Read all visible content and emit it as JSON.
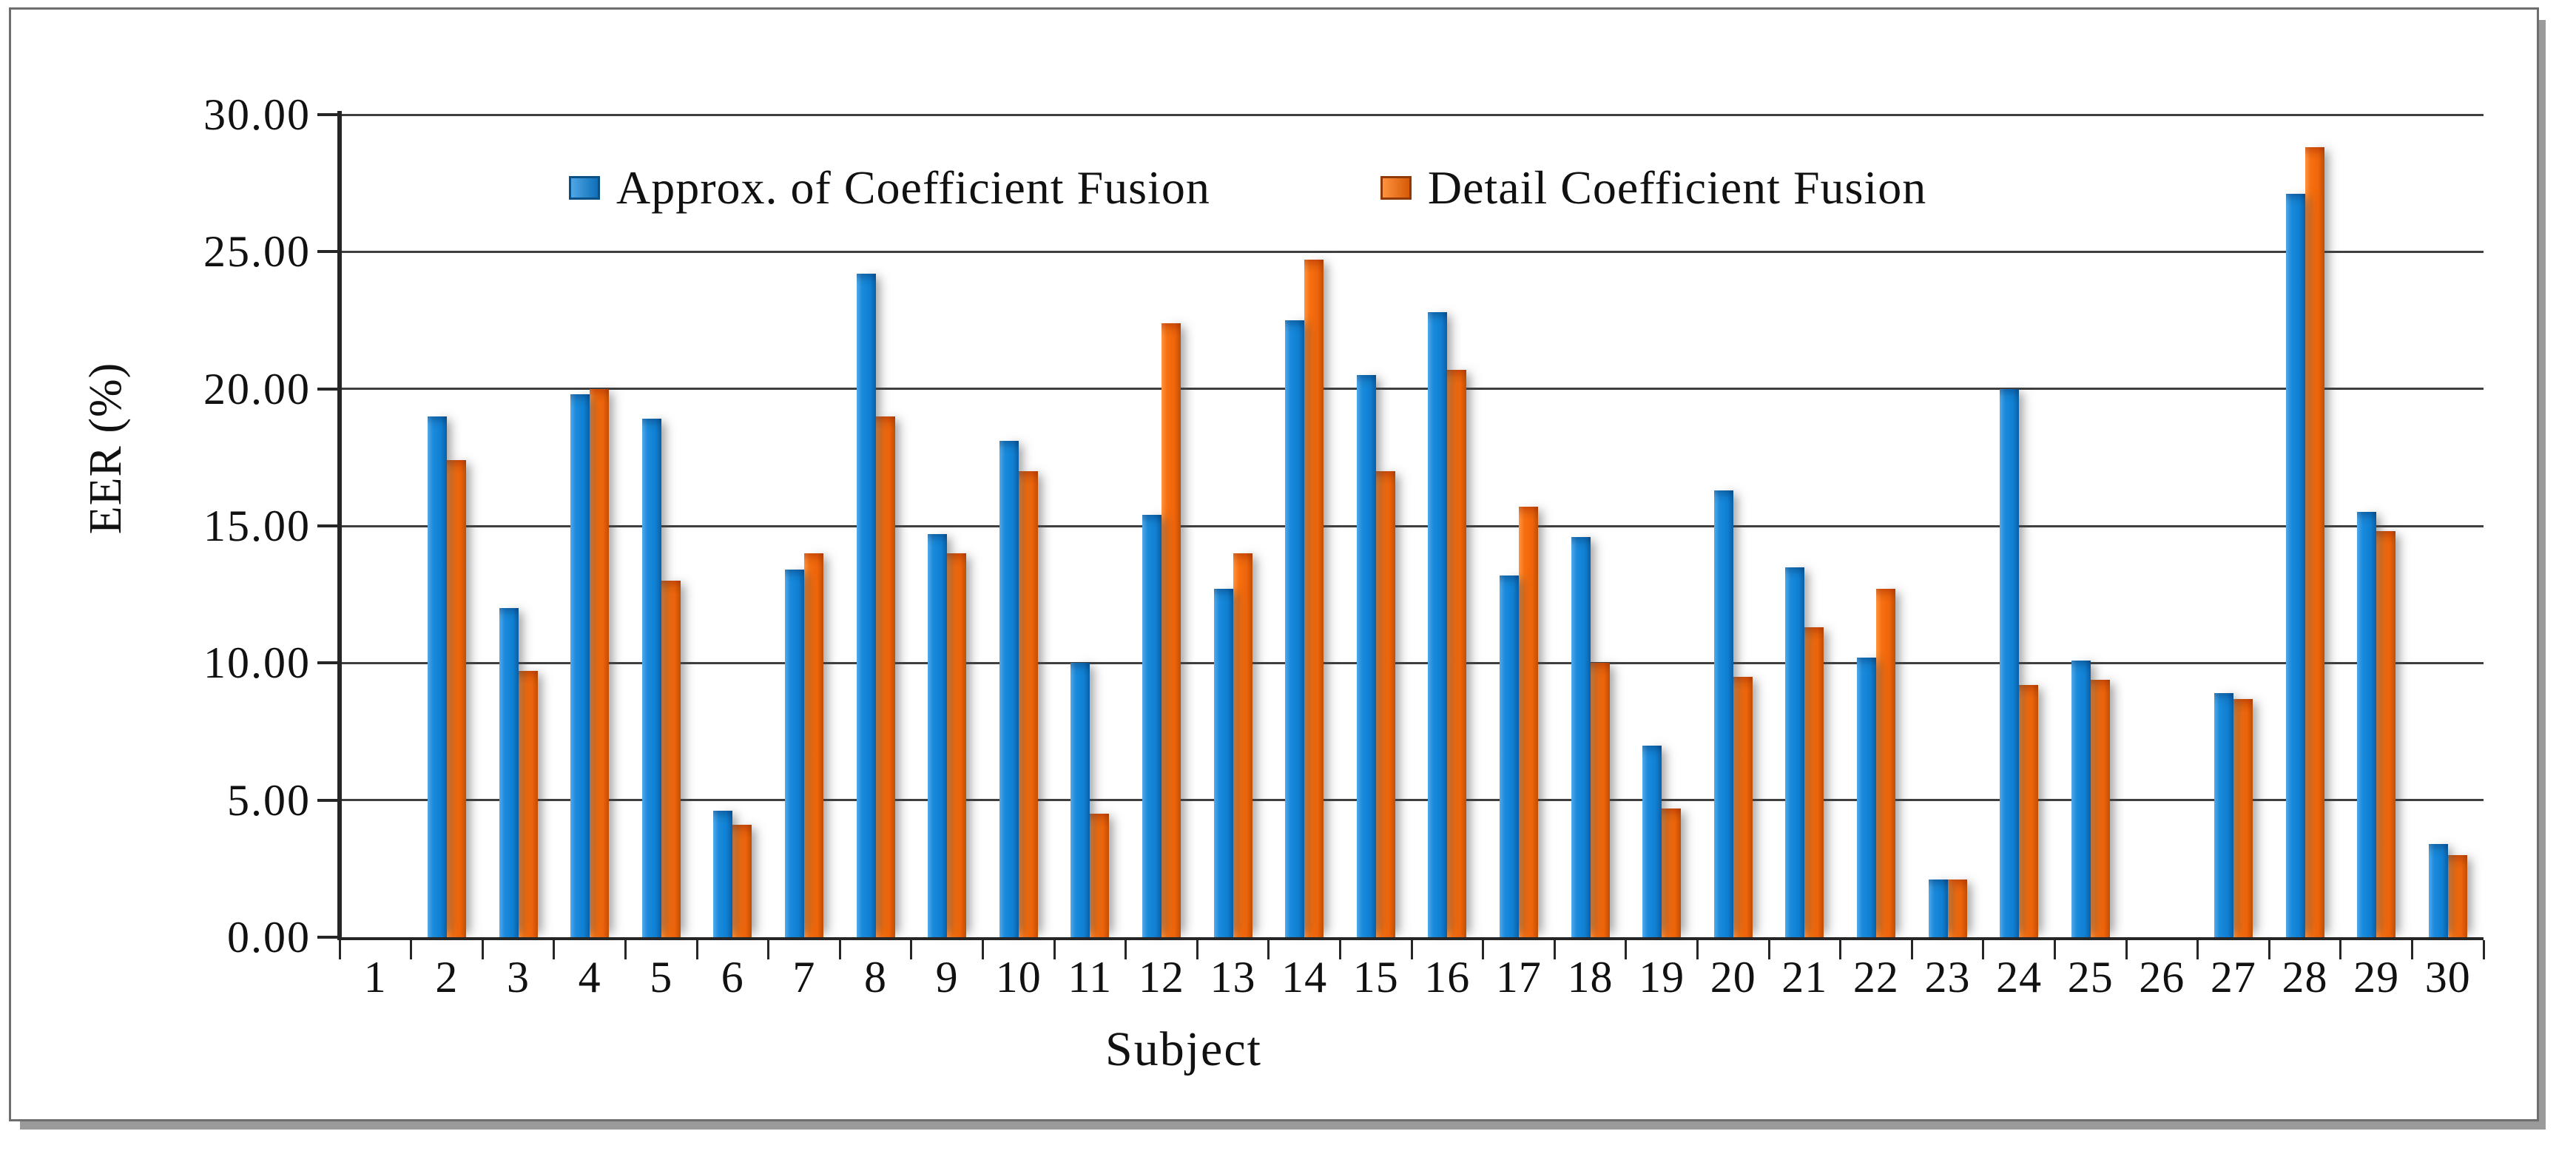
{
  "figure": {
    "background": "#ffffff",
    "frame_color": "#6e6e6e"
  },
  "chart_data": {
    "type": "bar",
    "title": "",
    "xlabel": "Subject",
    "ylabel": "EER (%)",
    "ylim": [
      0,
      30
    ],
    "y_ticks": [
      "0.00",
      "5.00",
      "10.00",
      "15.00",
      "20.00",
      "25.00",
      "30.00"
    ],
    "grid": "horizontal",
    "legend_position": "top-center-inside",
    "categories": [
      "1",
      "2",
      "3",
      "4",
      "5",
      "6",
      "7",
      "8",
      "9",
      "10",
      "11",
      "12",
      "13",
      "14",
      "15",
      "16",
      "17",
      "18",
      "19",
      "20",
      "21",
      "22",
      "23",
      "24",
      "25",
      "26",
      "27",
      "28",
      "29",
      "30"
    ],
    "series": [
      {
        "name": "Approx. of Coefficient Fusion",
        "color": "#1487d9",
        "values": [
          0,
          19.0,
          12.0,
          19.8,
          18.9,
          4.6,
          13.4,
          24.2,
          14.7,
          18.1,
          10.0,
          15.4,
          12.7,
          22.5,
          20.5,
          22.8,
          13.2,
          14.6,
          7.0,
          16.3,
          13.5,
          10.2,
          2.1,
          20.0,
          10.1,
          0,
          8.9,
          27.1,
          15.5,
          3.4
        ]
      },
      {
        "name": "Detail Coefficient Fusion",
        "color": "#f4690e",
        "values": [
          0,
          17.4,
          9.7,
          20.0,
          13.0,
          4.1,
          14.0,
          19.0,
          14.0,
          17.0,
          4.5,
          22.4,
          14.0,
          24.7,
          17.0,
          20.7,
          15.7,
          10.0,
          4.7,
          9.5,
          11.3,
          12.7,
          2.1,
          9.2,
          9.4,
          0,
          8.7,
          28.8,
          14.8,
          3.0
        ]
      }
    ]
  }
}
